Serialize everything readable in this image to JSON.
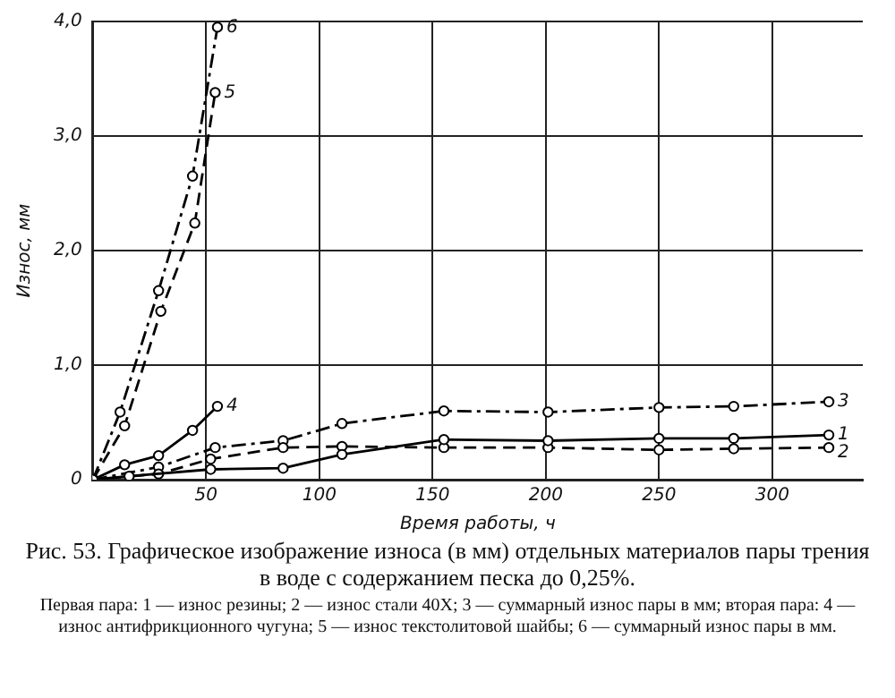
{
  "chart_data": {
    "type": "line",
    "title": "Рис. 53. Графическое изображение износа (в мм) отдельных материалов пары трения в воде с содержанием песка до 0,25%.",
    "xlabel": "Время работы, ч",
    "ylabel": "Износ, мм",
    "xlim": [
      0,
      340
    ],
    "xticks": [
      50,
      100,
      150,
      200,
      250,
      300
    ],
    "ylim": [
      0,
      4
    ],
    "yticks": [
      0,
      {
        "value": 1,
        "label": "1,0"
      },
      {
        "value": 2,
        "label": "2,0"
      },
      {
        "value": 3,
        "label": "3,0"
      },
      {
        "value": 4,
        "label": "4,0"
      }
    ],
    "grid": true,
    "legend": false,
    "marker": "circle",
    "annotations": [
      "Первая пара: 1 — износ резины; 2 — износ стали 40Х; 3 — суммарный износ пары в мм; вторая пара: 4 — износ антифрикционного чугуна; 5 — износ текстолитовой шайбы; 6 — суммарный износ пары в мм."
    ],
    "series": [
      {
        "name": "1",
        "color": "#000000",
        "line_style": "solid",
        "x": [
          0,
          16,
          52,
          84,
          110,
          155,
          201,
          250,
          283,
          325
        ],
        "values": [
          0,
          0.03,
          0.09,
          0.1,
          0.22,
          0.35,
          0.34,
          0.36,
          0.36,
          0.39
        ]
      },
      {
        "name": "2",
        "color": "#000000",
        "line_style": "dashed",
        "x": [
          0,
          29,
          52,
          84,
          110,
          155,
          201,
          250,
          283,
          325
        ],
        "values": [
          0,
          0.05,
          0.18,
          0.28,
          0.29,
          0.28,
          0.28,
          0.26,
          0.27,
          0.28
        ]
      },
      {
        "name": "3",
        "color": "#000000",
        "line_style": "dashdot",
        "x": [
          0,
          29,
          54,
          84,
          110,
          155,
          201,
          250,
          283,
          325
        ],
        "values": [
          0,
          0.11,
          0.28,
          0.34,
          0.49,
          0.6,
          0.59,
          0.63,
          0.64,
          0.68
        ]
      },
      {
        "name": "4",
        "color": "#000000",
        "line_style": "solid",
        "x": [
          0,
          14,
          29,
          44,
          55
        ],
        "values": [
          0,
          0.13,
          0.21,
          0.43,
          0.64
        ]
      },
      {
        "name": "5",
        "color": "#000000",
        "line_style": "dashed",
        "x": [
          0,
          14,
          30,
          45,
          54
        ],
        "values": [
          0,
          0.47,
          1.47,
          2.24,
          3.38
        ]
      },
      {
        "name": "6",
        "color": "#000000",
        "line_style": "dashdot",
        "x": [
          0,
          12,
          29,
          44,
          55
        ],
        "values": [
          0,
          0.59,
          1.65,
          2.65,
          3.95
        ]
      }
    ]
  }
}
